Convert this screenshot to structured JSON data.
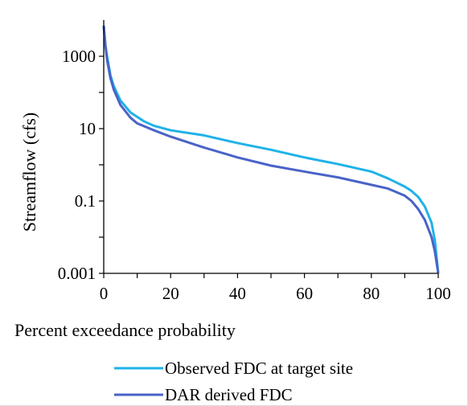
{
  "chart_data": {
    "type": "line",
    "title": "",
    "xlabel": "Percent exceedance probability",
    "ylabel": "Streamflow (cfs)",
    "xlim": [
      0,
      100
    ],
    "ylim": [
      0.001,
      10000
    ],
    "yscale": "log",
    "xticks": [
      "0",
      "20",
      "40",
      "60",
      "80",
      "100"
    ],
    "yticks": [
      "0.001",
      "0.1",
      "10",
      "1000"
    ],
    "grid": false,
    "legend_position": "bottom",
    "series": [
      {
        "name": "Observed FDC at target site",
        "color": "#1fb2e8",
        "points": [
          [
            0,
            7000
          ],
          [
            0.5,
            2000
          ],
          [
            1,
            1000
          ],
          [
            2,
            300
          ],
          [
            3,
            150
          ],
          [
            5,
            60
          ],
          [
            8,
            28
          ],
          [
            12,
            16
          ],
          [
            15,
            12
          ],
          [
            20,
            9
          ],
          [
            30,
            6.5
          ],
          [
            40,
            4
          ],
          [
            50,
            2.6
          ],
          [
            60,
            1.6
          ],
          [
            70,
            1.05
          ],
          [
            80,
            0.65
          ],
          [
            85,
            0.42
          ],
          [
            90,
            0.25
          ],
          [
            92,
            0.19
          ],
          [
            94,
            0.13
          ],
          [
            96,
            0.07
          ],
          [
            98,
            0.025
          ],
          [
            99,
            0.008
          ],
          [
            100,
            0.001
          ]
        ]
      },
      {
        "name": "DAR derived FDC",
        "color": "#4a63c7",
        "points": [
          [
            0,
            7000
          ],
          [
            0.5,
            2000
          ],
          [
            1,
            800
          ],
          [
            2,
            250
          ],
          [
            3,
            120
          ],
          [
            5,
            45
          ],
          [
            8,
            20
          ],
          [
            10,
            14
          ],
          [
            15,
            9
          ],
          [
            20,
            6
          ],
          [
            30,
            3
          ],
          [
            40,
            1.6
          ],
          [
            50,
            0.95
          ],
          [
            60,
            0.65
          ],
          [
            70,
            0.45
          ],
          [
            80,
            0.28
          ],
          [
            85,
            0.22
          ],
          [
            90,
            0.14
          ],
          [
            92,
            0.1
          ],
          [
            94,
            0.06
          ],
          [
            96,
            0.03
          ],
          [
            98,
            0.01
          ],
          [
            99,
            0.004
          ],
          [
            100,
            0.001
          ]
        ]
      }
    ]
  }
}
